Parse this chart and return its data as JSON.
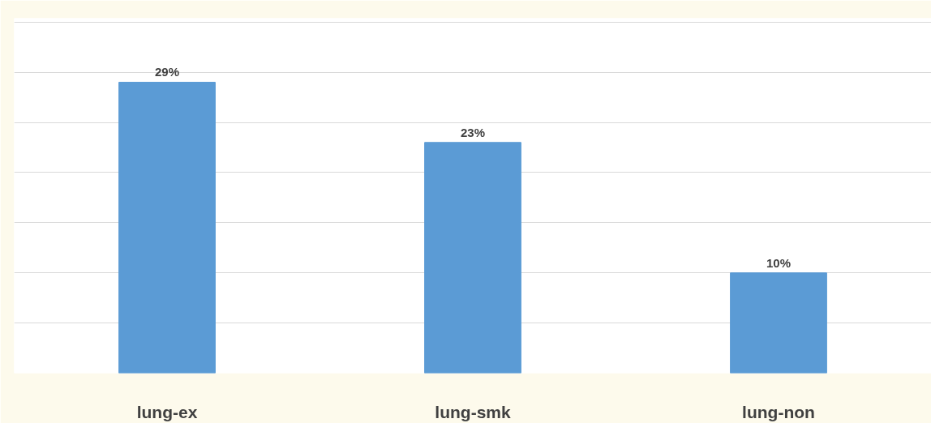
{
  "chart_data": {
    "type": "bar",
    "categories": [
      "lung-ex",
      "lung-smk",
      "lung-non"
    ],
    "values": [
      29,
      23,
      10
    ],
    "color": "#5b9bd5",
    "data_labels": true,
    "value_labels": [
      "29%",
      "23%",
      "10%"
    ],
    "grid": "y"
  }
}
